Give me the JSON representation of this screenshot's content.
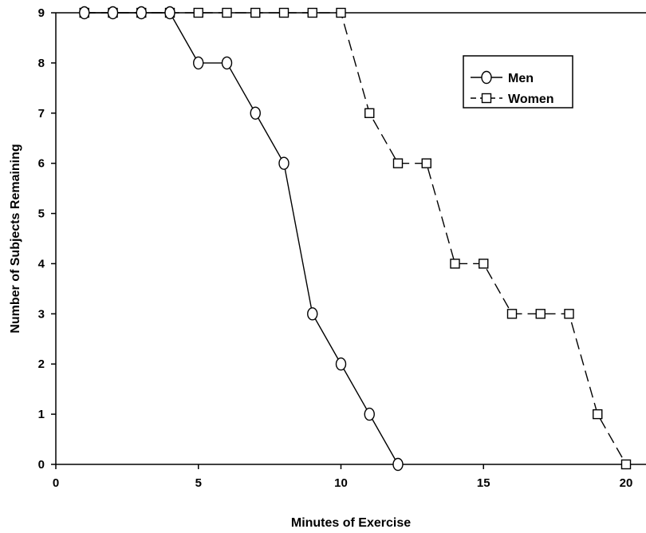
{
  "chart_data": {
    "type": "line",
    "title": "",
    "xlabel": "Minutes of Exercise",
    "ylabel": "Number of Subjects Remaining",
    "xlim": [
      0,
      21
    ],
    "ylim": [
      0,
      9
    ],
    "xticks": [
      0,
      5,
      10,
      15,
      20
    ],
    "yticks": [
      0,
      1,
      2,
      3,
      4,
      5,
      6,
      7,
      8,
      9
    ],
    "grid": false,
    "legend_position": "top-right",
    "series": [
      {
        "name": "Men",
        "marker": "circle",
        "line_style": "solid",
        "color": "#000000",
        "x": [
          1,
          2,
          3,
          4,
          5,
          6,
          7,
          8,
          9,
          10,
          11,
          12
        ],
        "y": [
          9,
          9,
          9,
          9,
          8,
          8,
          7,
          6,
          3,
          2,
          1,
          0
        ]
      },
      {
        "name": "Women",
        "marker": "square",
        "line_style": "dashed",
        "color": "#000000",
        "x": [
          1,
          2,
          3,
          4,
          5,
          6,
          7,
          8,
          9,
          10,
          11,
          12,
          13,
          14,
          15,
          16,
          17,
          18,
          19,
          20
        ],
        "y": [
          9,
          9,
          9,
          9,
          9,
          9,
          9,
          9,
          9,
          9,
          7,
          6,
          6,
          4,
          4,
          3,
          3,
          3,
          1,
          0
        ]
      }
    ]
  }
}
